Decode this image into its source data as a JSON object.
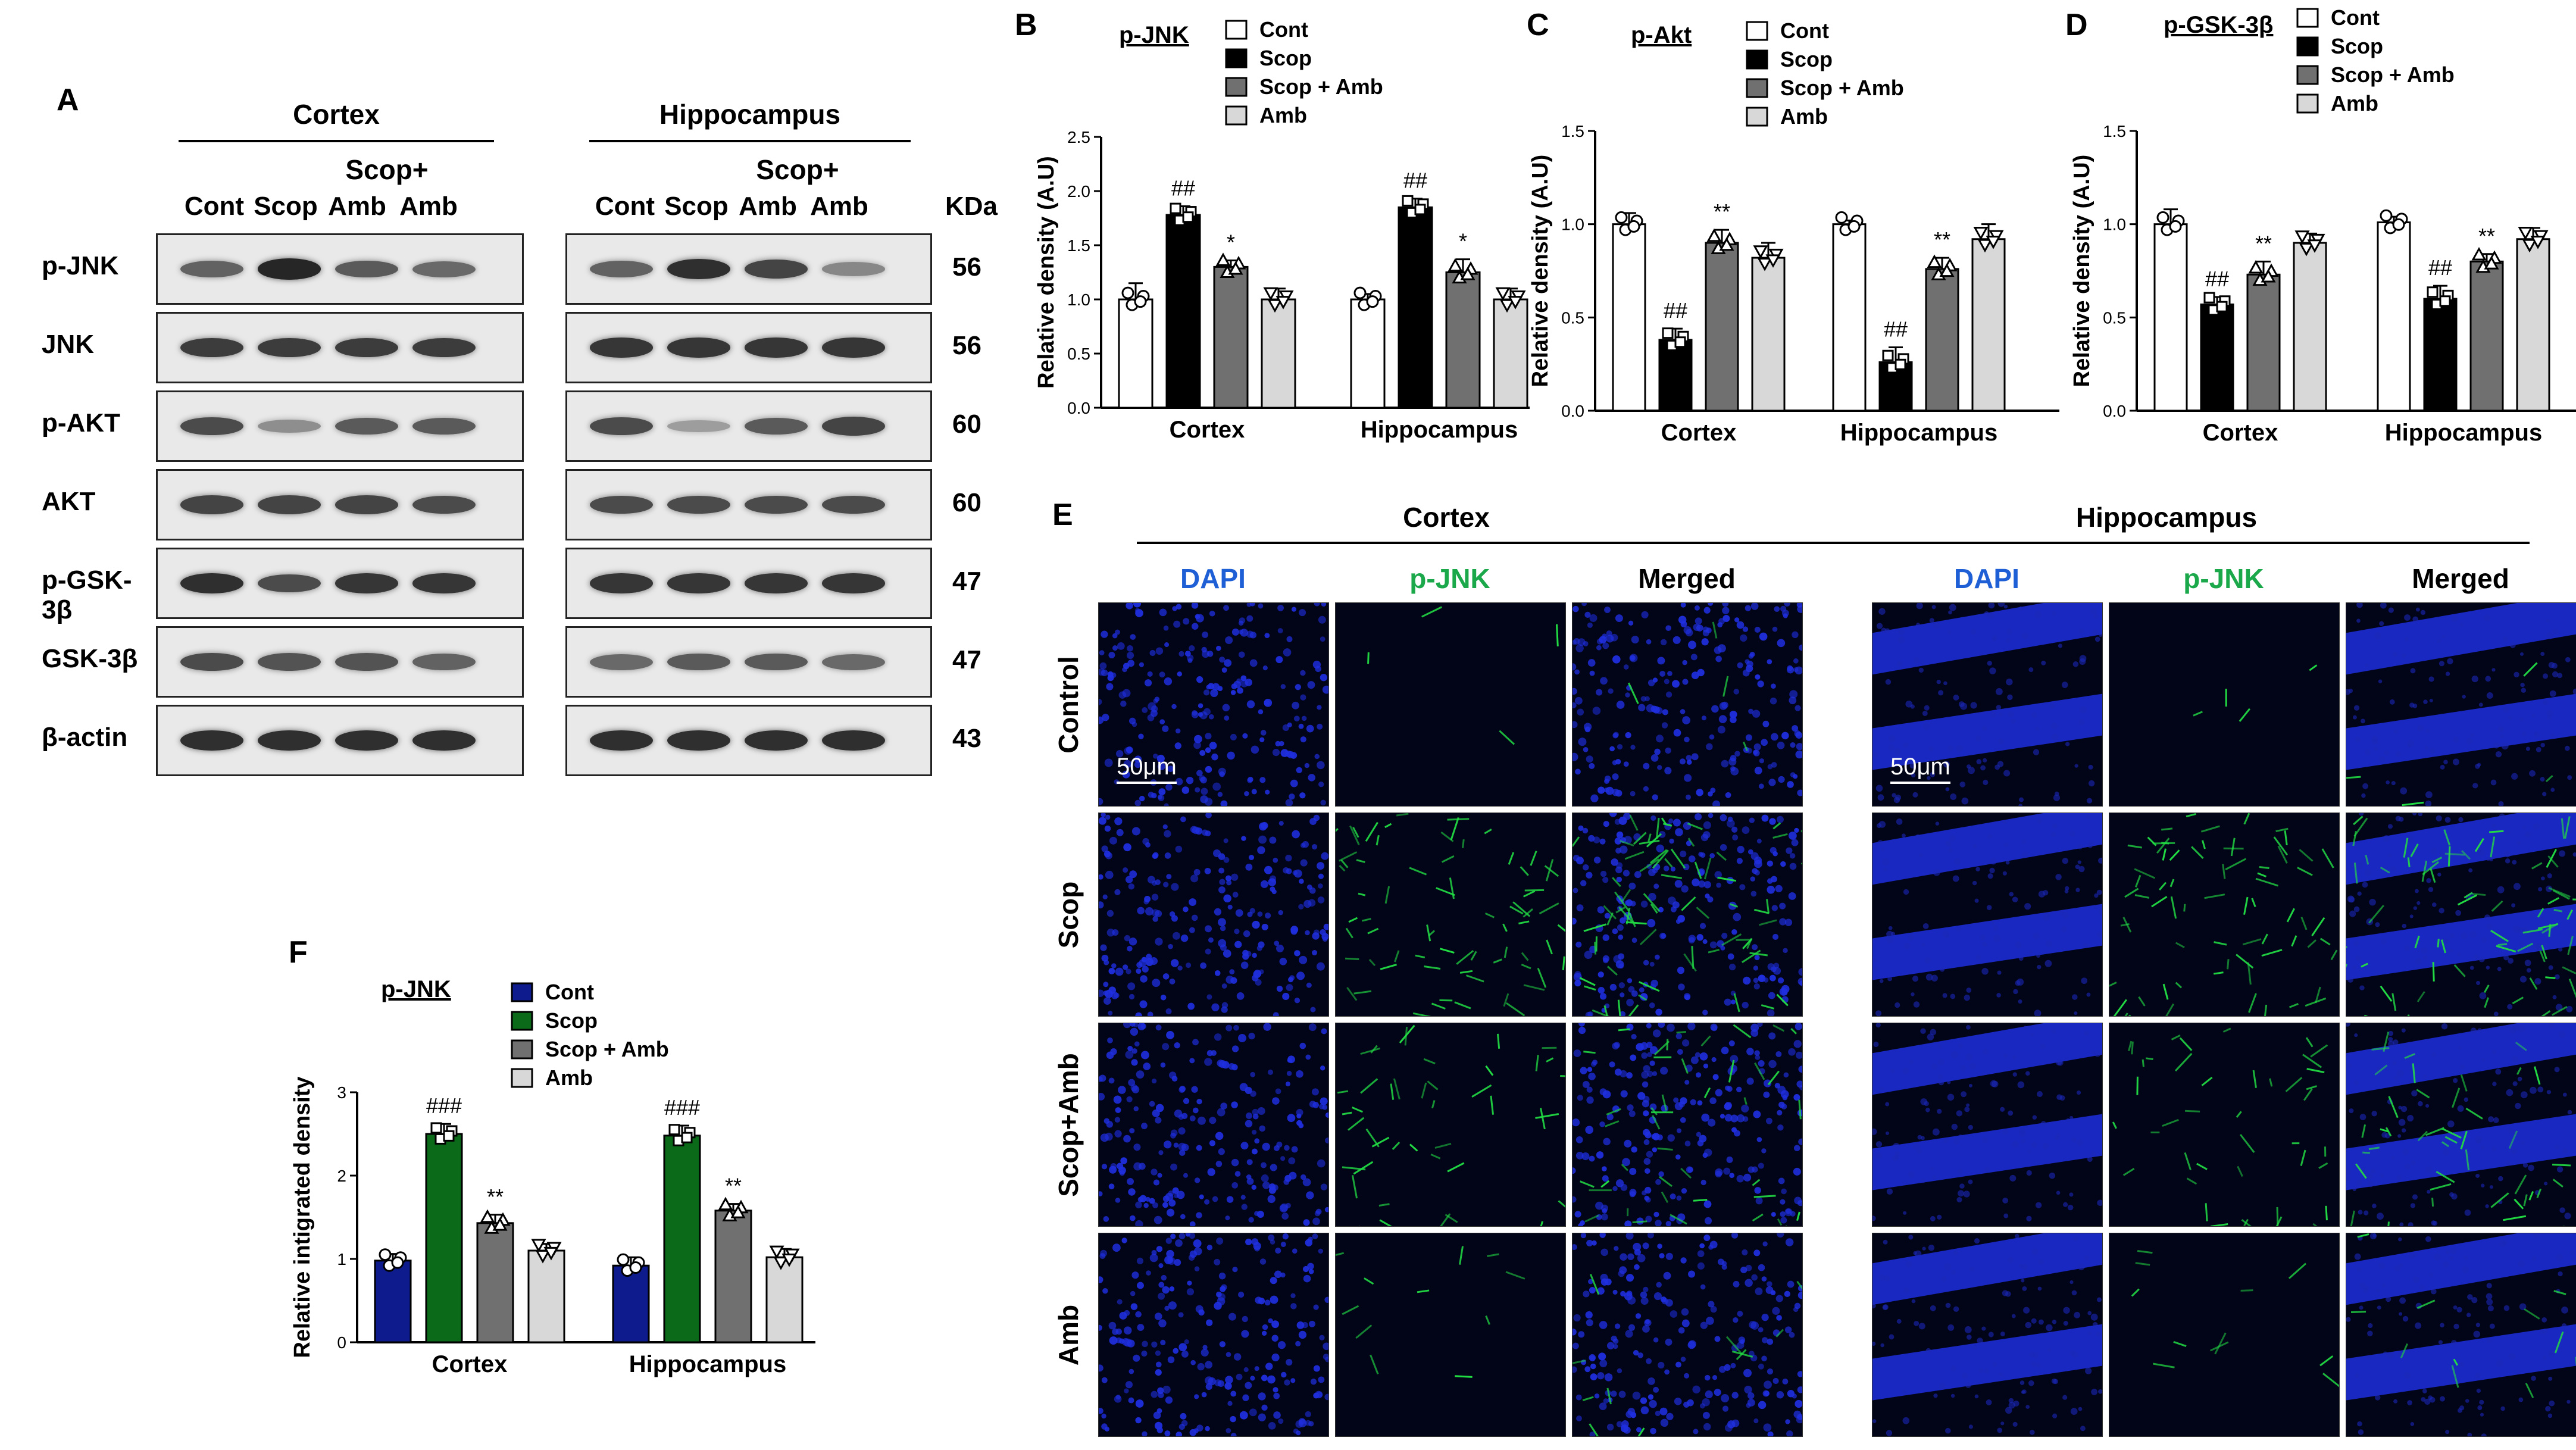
{
  "panel_a": {
    "label": "A",
    "regions": [
      "Cortex",
      "Hippocampus"
    ],
    "group_header": "Scop+",
    "lanes": [
      "Cont",
      "Scop",
      "Amb",
      "Amb"
    ],
    "kda_header": "KDa",
    "rows": [
      {
        "name": "p-JNK",
        "kda": "56",
        "cortex": [
          0.55,
          0.95,
          0.6,
          0.5
        ],
        "hippo": [
          0.55,
          0.9,
          0.75,
          0.3
        ]
      },
      {
        "name": "JNK",
        "kda": "56",
        "cortex": [
          0.8,
          0.8,
          0.8,
          0.8
        ],
        "hippo": [
          0.85,
          0.85,
          0.85,
          0.85
        ]
      },
      {
        "name": "p-AKT",
        "kda": "60",
        "cortex": [
          0.7,
          0.25,
          0.6,
          0.6
        ],
        "hippo": [
          0.7,
          0.15,
          0.6,
          0.75
        ]
      },
      {
        "name": "AKT",
        "kda": "60",
        "cortex": [
          0.75,
          0.75,
          0.75,
          0.7
        ],
        "hippo": [
          0.7,
          0.7,
          0.7,
          0.7
        ]
      },
      {
        "name": "p-GSK-3β",
        "kda": "47",
        "cortex": [
          0.9,
          0.7,
          0.85,
          0.85
        ],
        "hippo": [
          0.85,
          0.85,
          0.85,
          0.85
        ]
      },
      {
        "name": "GSK-3β",
        "kda": "47",
        "cortex": [
          0.7,
          0.65,
          0.65,
          0.55
        ],
        "hippo": [
          0.5,
          0.6,
          0.6,
          0.5
        ]
      },
      {
        "name": "β-actin",
        "kda": "43",
        "cortex": [
          0.9,
          0.9,
          0.9,
          0.9
        ],
        "hippo": [
          0.9,
          0.9,
          0.9,
          0.9
        ]
      }
    ]
  },
  "panel_e": {
    "label": "E",
    "regions": [
      "Cortex",
      "Hippocampus"
    ],
    "channels": [
      "DAPI",
      "p-JNK",
      "Merged"
    ],
    "rows": [
      "Control",
      "Scop",
      "Scop+Amb",
      "Amb"
    ],
    "scale_bar": "50μm",
    "colors": {
      "dapi_label": "#1f5fd6",
      "pjnk_label": "#1aa84a",
      "dapi": "#1f2fe0",
      "pjnk": "#22dd44"
    },
    "green_signal_level": [
      0.05,
      1.0,
      0.6,
      0.15
    ]
  },
  "chart_data": [
    {
      "panel": "B",
      "type": "bar",
      "title": "p-JNK",
      "categories": [
        "Cortex",
        "Hippocampus"
      ],
      "ylabel": "Relative density (A.U)",
      "ylim": [
        0,
        2.5
      ],
      "yticks": [
        "0.0",
        "0.5",
        "1.0",
        "1.5",
        "2.0",
        "2.5"
      ],
      "legend_position": "top-right",
      "series": [
        {
          "name": "Cont",
          "color": "#ffffff",
          "values": [
            1.0,
            1.0
          ],
          "errors": [
            0.15,
            0.05
          ],
          "marker": "circle"
        },
        {
          "name": "Scop",
          "color": "#000000",
          "values": [
            1.78,
            1.85
          ],
          "errors": [
            0.08,
            0.08
          ],
          "marker": "square",
          "annotations": [
            "##",
            "##"
          ]
        },
        {
          "name": "Scop + Amb",
          "color": "#707070",
          "values": [
            1.3,
            1.25
          ],
          "errors": [
            0.06,
            0.12
          ],
          "marker": "triangle",
          "annotations": [
            "*",
            "*"
          ]
        },
        {
          "name": "Amb",
          "color": "#d8d8d8",
          "values": [
            1.0,
            1.0
          ],
          "errors": [
            0.1,
            0.1
          ],
          "marker": "invtriangle"
        }
      ]
    },
    {
      "panel": "C",
      "type": "bar",
      "title": "p-Akt",
      "categories": [
        "Cortex",
        "Hippocampus"
      ],
      "ylabel": "Relative density (A.U)",
      "ylim": [
        0,
        1.5
      ],
      "yticks": [
        "0.0",
        "0.5",
        "1.0",
        "1.5"
      ],
      "legend_position": "top-right",
      "series": [
        {
          "name": "Cont",
          "color": "#ffffff",
          "values": [
            1.0,
            1.0
          ],
          "errors": [
            0.06,
            0.02
          ],
          "marker": "circle"
        },
        {
          "name": "Scop",
          "color": "#000000",
          "values": [
            0.38,
            0.26
          ],
          "errors": [
            0.06,
            0.08
          ],
          "marker": "square",
          "annotations": [
            "##",
            "##"
          ]
        },
        {
          "name": "Scop + Amb",
          "color": "#707070",
          "values": [
            0.9,
            0.76
          ],
          "errors": [
            0.07,
            0.06
          ],
          "marker": "triangle",
          "annotations": [
            "**",
            "**"
          ]
        },
        {
          "name": "Amb",
          "color": "#d8d8d8",
          "values": [
            0.82,
            0.92
          ],
          "errors": [
            0.08,
            0.08
          ],
          "marker": "invtriangle"
        }
      ]
    },
    {
      "panel": "D",
      "type": "bar",
      "title": "p-GSK-3β",
      "categories": [
        "Cortex",
        "Hippocampus"
      ],
      "ylabel": "Relative density (A.U)",
      "ylim": [
        0,
        1.5
      ],
      "yticks": [
        "0.0",
        "0.5",
        "1.0",
        "1.5"
      ],
      "legend_position": "top-right",
      "series": [
        {
          "name": "Cont",
          "color": "#ffffff",
          "values": [
            1.0,
            1.01
          ],
          "errors": [
            0.08,
            0.03
          ],
          "marker": "circle"
        },
        {
          "name": "Scop",
          "color": "#000000",
          "values": [
            0.57,
            0.6
          ],
          "errors": [
            0.04,
            0.07
          ],
          "marker": "square",
          "annotations": [
            "##",
            "##"
          ]
        },
        {
          "name": "Scop + Amb",
          "color": "#707070",
          "values": [
            0.73,
            0.8
          ],
          "errors": [
            0.07,
            0.04
          ],
          "marker": "triangle",
          "annotations": [
            "**",
            "**"
          ]
        },
        {
          "name": "Amb",
          "color": "#d8d8d8",
          "values": [
            0.9,
            0.92
          ],
          "errors": [
            0.05,
            0.06
          ],
          "marker": "invtriangle"
        }
      ]
    },
    {
      "panel": "F",
      "type": "bar",
      "title": "p-JNK",
      "categories": [
        "Cortex",
        "Hippocampus"
      ],
      "ylabel": "Relative intigrated density",
      "ylim": [
        0,
        3
      ],
      "yticks": [
        "0",
        "1",
        "2",
        "3"
      ],
      "legend_position": "top-right",
      "series": [
        {
          "name": "Cont",
          "color": "#0d1b8c",
          "values": [
            0.98,
            0.92
          ],
          "errors": [
            0.08,
            0.1
          ],
          "marker": "circle"
        },
        {
          "name": "Scop",
          "color": "#0b6a1a",
          "values": [
            2.5,
            2.48
          ],
          "errors": [
            0.12,
            0.12
          ],
          "marker": "square",
          "annotations": [
            "###",
            "###"
          ]
        },
        {
          "name": "Scop + Amb",
          "color": "#707070",
          "values": [
            1.43,
            1.58
          ],
          "errors": [
            0.1,
            0.08
          ],
          "marker": "triangle",
          "annotations": [
            "**",
            "**"
          ]
        },
        {
          "name": "Amb",
          "color": "#d8d8d8",
          "values": [
            1.1,
            1.02
          ],
          "errors": [
            0.08,
            0.1
          ],
          "marker": "invtriangle"
        }
      ]
    }
  ]
}
